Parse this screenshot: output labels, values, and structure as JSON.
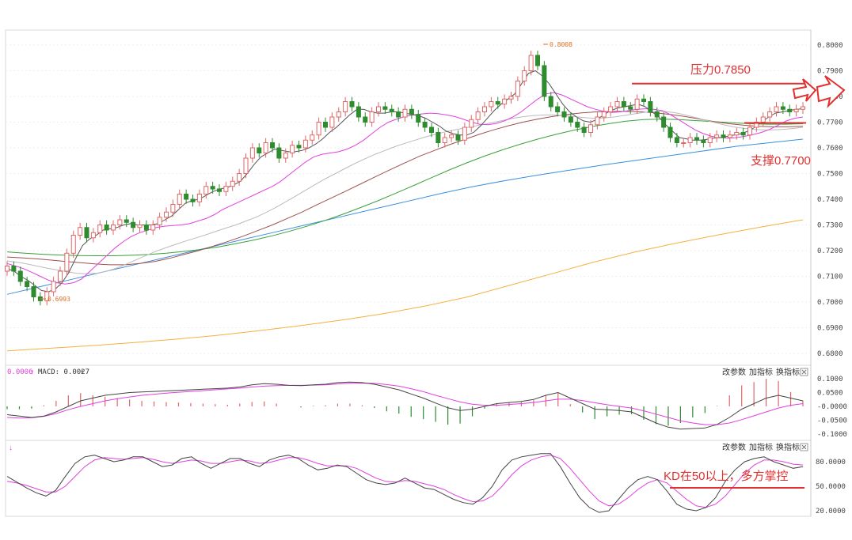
{
  "panels": {
    "price": {
      "y_ticks": [
        "0.8000",
        "0.7900",
        "0.7800",
        "0.7700",
        "0.7600",
        "0.7500",
        "0.7400",
        "0.7300",
        "0.7200",
        "0.7100",
        "0.7000",
        "0.6900",
        "0.6800"
      ],
      "high_label": "0.8008",
      "low_label": "0.6993",
      "resistance_label": "压力0.7850",
      "support_label": "支撑0.7700"
    },
    "macd": {
      "legend_value": "0.0006",
      "legend_macd": "MACD: 0.0027",
      "y_ticks": [
        "0.1000",
        "0.0500",
        "-0.0000",
        "-0.0500",
        "-0.1000"
      ],
      "buttons": [
        "改参数",
        "加指标",
        "换指标"
      ]
    },
    "kd": {
      "y_ticks": [
        "80.0000",
        "50.0000",
        "20.0000"
      ],
      "buttons": [
        "改参数",
        "加指标",
        "换指标"
      ],
      "annotation": "KD在50以上，多方掌控"
    }
  },
  "colors": {
    "up": "#e06666",
    "down": "#2e8b2e",
    "ma5": "#555555",
    "ma10": "#e040e0",
    "ma20": "#bbbbbb",
    "ma30": "#a05050",
    "ma60": "#3aa03a",
    "ma120": "#3a8fdc",
    "ma250": "#f5b040",
    "annotation": "#e03030"
  },
  "chart_data": [
    {
      "type": "candlestick",
      "title": "",
      "ylim": [
        0.675,
        0.805
      ],
      "key_values": {
        "high": 0.8008,
        "low": 0.6993,
        "resistance": 0.785,
        "support": 0.77
      },
      "close": [
        0.714,
        0.712,
        0.708,
        0.706,
        0.702,
        0.7005,
        0.704,
        0.708,
        0.712,
        0.719,
        0.726,
        0.729,
        0.725,
        0.727,
        0.73,
        0.728,
        0.73,
        0.732,
        0.731,
        0.729,
        0.73,
        0.728,
        0.73,
        0.733,
        0.735,
        0.738,
        0.742,
        0.74,
        0.739,
        0.742,
        0.745,
        0.744,
        0.743,
        0.745,
        0.747,
        0.75,
        0.756,
        0.76,
        0.758,
        0.762,
        0.76,
        0.756,
        0.758,
        0.761,
        0.76,
        0.763,
        0.765,
        0.77,
        0.768,
        0.772,
        0.774,
        0.778,
        0.776,
        0.772,
        0.77,
        0.774,
        0.776,
        0.775,
        0.774,
        0.772,
        0.775,
        0.773,
        0.77,
        0.768,
        0.766,
        0.762,
        0.764,
        0.765,
        0.763,
        0.768,
        0.771,
        0.774,
        0.776,
        0.778,
        0.777,
        0.779,
        0.78,
        0.786,
        0.79,
        0.796,
        0.792,
        0.78,
        0.776,
        0.774,
        0.772,
        0.77,
        0.768,
        0.766,
        0.769,
        0.772,
        0.774,
        0.776,
        0.778,
        0.776,
        0.775,
        0.779,
        0.778,
        0.774,
        0.772,
        0.768,
        0.764,
        0.762,
        0.762,
        0.764,
        0.763,
        0.762,
        0.764,
        0.765,
        0.764,
        0.765,
        0.766,
        0.765,
        0.768,
        0.77,
        0.772,
        0.774,
        0.776,
        0.775,
        0.774,
        0.775,
        0.776
      ],
      "ma5": [
        0.713,
        0.712,
        0.71,
        0.7085,
        0.7065,
        0.7045,
        0.704,
        0.705,
        0.7075,
        0.7115,
        0.717,
        0.722,
        0.7245,
        0.726,
        0.728,
        0.7285,
        0.729,
        0.73,
        0.7305,
        0.73,
        0.73,
        0.73,
        0.7305,
        0.732,
        0.7335,
        0.736,
        0.7385,
        0.7395,
        0.74,
        0.7415,
        0.743,
        0.744,
        0.7445,
        0.7455,
        0.747,
        0.75,
        0.7535,
        0.7565,
        0.758,
        0.7595,
        0.759,
        0.7585,
        0.7585,
        0.759,
        0.76,
        0.7615,
        0.7635,
        0.766,
        0.768,
        0.7705,
        0.773,
        0.775,
        0.775,
        0.774,
        0.7735,
        0.7735,
        0.774,
        0.774,
        0.7735,
        0.773,
        0.7725,
        0.7715,
        0.77,
        0.7685,
        0.7665,
        0.7655,
        0.765,
        0.765,
        0.766,
        0.7685,
        0.7715,
        0.7745,
        0.777,
        0.779,
        0.781,
        0.785,
        0.789,
        0.79,
        0.788,
        0.785,
        0.781,
        0.777,
        0.774,
        0.772,
        0.7705,
        0.77,
        0.771,
        0.773,
        0.7745,
        0.7755,
        0.776,
        0.7765,
        0.777,
        0.776,
        0.774,
        0.772,
        0.769,
        0.7665,
        0.764,
        0.7635,
        0.763,
        0.763,
        0.7633,
        0.7638,
        0.764,
        0.7645,
        0.765,
        0.7655,
        0.7665,
        0.768,
        0.77,
        0.772,
        0.7735,
        0.774,
        0.7745,
        0.775,
        0.7752
      ],
      "ma10": [
        0.715,
        0.714,
        0.713,
        0.7115,
        0.71,
        0.7085,
        0.7075,
        0.707,
        0.7075,
        0.709,
        0.712,
        0.715,
        0.718,
        0.721,
        0.7235,
        0.7255,
        0.727,
        0.728,
        0.729,
        0.7295,
        0.7298,
        0.73,
        0.7305,
        0.7315,
        0.7325,
        0.734,
        0.736,
        0.7375,
        0.739,
        0.7405,
        0.742,
        0.7435,
        0.745,
        0.747,
        0.7495,
        0.752,
        0.7545,
        0.7565,
        0.7575,
        0.758,
        0.7585,
        0.7595,
        0.761,
        0.763,
        0.7655,
        0.768,
        0.77,
        0.7712,
        0.7722,
        0.7728,
        0.7732,
        0.7735,
        0.7733,
        0.7728,
        0.7722,
        0.7712,
        0.77,
        0.7692,
        0.769,
        0.7695,
        0.7705,
        0.772,
        0.774,
        0.7765,
        0.779,
        0.781,
        0.7815,
        0.7805,
        0.779,
        0.7775,
        0.776,
        0.775,
        0.7742,
        0.7738,
        0.774,
        0.7745,
        0.775,
        0.7752,
        0.775,
        0.7745,
        0.773,
        0.771,
        0.769,
        0.767,
        0.7655,
        0.7645,
        0.764,
        0.7638,
        0.764,
        0.7645,
        0.7652,
        0.766,
        0.7672,
        0.7688,
        0.7705,
        0.7715,
        0.772
      ],
      "ma20": [
        0.716,
        0.7155,
        0.7148,
        0.714,
        0.7132,
        0.7125,
        0.7118,
        0.7112,
        0.711,
        0.7112,
        0.712,
        0.7132,
        0.7148,
        0.7165,
        0.7182,
        0.7198,
        0.7212,
        0.7225,
        0.7238,
        0.725,
        0.7262,
        0.7275,
        0.7288,
        0.73,
        0.7315,
        0.733,
        0.7348,
        0.7368,
        0.739,
        0.7412,
        0.7435,
        0.7458,
        0.748,
        0.75,
        0.752,
        0.754,
        0.7558,
        0.7575,
        0.759,
        0.7605,
        0.7618,
        0.763,
        0.7642,
        0.7652,
        0.7662,
        0.767,
        0.7678,
        0.7685,
        0.7692,
        0.77,
        0.7708,
        0.7716,
        0.7722,
        0.7726,
        0.7728,
        0.7728,
        0.7726,
        0.7722,
        0.7718,
        0.7715,
        0.7716,
        0.772,
        0.7726,
        0.7732,
        0.7738,
        0.7742,
        0.7742,
        0.7738,
        0.773,
        0.772,
        0.771,
        0.77,
        0.769,
        0.7682,
        0.7676,
        0.7672,
        0.767,
        0.767,
        0.7672,
        0.7675,
        0.768
      ],
      "ma30": [
        0.7175,
        0.7172,
        0.7168,
        0.7163,
        0.7158,
        0.7153,
        0.7148,
        0.7145,
        0.7145,
        0.715,
        0.7158,
        0.717,
        0.7185,
        0.72,
        0.7218,
        0.7236,
        0.7256,
        0.7278,
        0.73,
        0.7325,
        0.735,
        0.7378,
        0.7405,
        0.7432,
        0.746,
        0.7488,
        0.7515,
        0.7542,
        0.7568,
        0.759,
        0.7612,
        0.7632,
        0.7652,
        0.767,
        0.7686,
        0.77,
        0.7712,
        0.7722,
        0.773,
        0.7736,
        0.774,
        0.7742,
        0.7742,
        0.774,
        0.7736,
        0.773,
        0.7722,
        0.7712,
        0.7702,
        0.7694,
        0.7688,
        0.7684,
        0.7682,
        0.7682,
        0.7684
      ],
      "ma60": [
        0.7195,
        0.719,
        0.7186,
        0.7183,
        0.7181,
        0.718,
        0.718,
        0.7182,
        0.7185,
        0.719,
        0.7197,
        0.7205,
        0.7215,
        0.7228,
        0.7242,
        0.7258,
        0.7276,
        0.7296,
        0.7318,
        0.7342,
        0.7368,
        0.7395,
        0.7424,
        0.7454,
        0.7484,
        0.7514,
        0.7542,
        0.7568,
        0.7592,
        0.7614,
        0.7634,
        0.7652,
        0.7668,
        0.7682,
        0.7694,
        0.7704,
        0.771,
        0.7712,
        0.771,
        0.7706,
        0.7702,
        0.7698,
        0.7694,
        0.7692,
        0.7692,
        0.7694
      ],
      "ma120": [
        0.703,
        0.706,
        0.709,
        0.712,
        0.715,
        0.718,
        0.721,
        0.724,
        0.727,
        0.73,
        0.733,
        0.736,
        0.739,
        0.742,
        0.7448,
        0.7472,
        0.7494,
        0.7514,
        0.7534,
        0.7552,
        0.757,
        0.7588,
        0.7606,
        0.762,
        0.7634
      ],
      "ma250": [
        0.681,
        0.682,
        0.683,
        0.6842,
        0.6855,
        0.687,
        0.6888,
        0.6908,
        0.693,
        0.6955,
        0.6985,
        0.702,
        0.7065,
        0.711,
        0.7155,
        0.7195,
        0.723,
        0.7262,
        0.7292,
        0.732
      ]
    },
    {
      "type": "macd",
      "title": "",
      "ylim": [
        -0.11,
        0.11
      ],
      "dif": [
        -0.03,
        -0.035,
        -0.04,
        -0.035,
        -0.02,
        0.0,
        0.02,
        0.03,
        0.04,
        0.045,
        0.05,
        0.052,
        0.054,
        0.056,
        0.058,
        0.06,
        0.062,
        0.064,
        0.066,
        0.07,
        0.078,
        0.082,
        0.08,
        0.076,
        0.075,
        0.078,
        0.08,
        0.086,
        0.088,
        0.086,
        0.08,
        0.07,
        0.06,
        0.045,
        0.03,
        0.012,
        -0.005,
        -0.015,
        -0.01,
        0.0,
        0.01,
        0.014,
        0.018,
        0.025,
        0.04,
        0.05,
        0.03,
        0.01,
        -0.01,
        -0.012,
        -0.015,
        -0.02,
        -0.04,
        -0.06,
        -0.075,
        -0.082,
        -0.08,
        -0.078,
        -0.065,
        -0.04,
        -0.01,
        0.01,
        0.03,
        0.04,
        0.03,
        0.02
      ],
      "dea": [
        -0.04,
        -0.042,
        -0.041,
        -0.036,
        -0.026,
        -0.012,
        0.0,
        0.01,
        0.02,
        0.028,
        0.034,
        0.04,
        0.044,
        0.048,
        0.051,
        0.054,
        0.057,
        0.06,
        0.063,
        0.066,
        0.07,
        0.073,
        0.075,
        0.076,
        0.076,
        0.077,
        0.078,
        0.081,
        0.083,
        0.084,
        0.083,
        0.079,
        0.073,
        0.064,
        0.053,
        0.04,
        0.028,
        0.016,
        0.008,
        0.004,
        0.004,
        0.007,
        0.01,
        0.014,
        0.02,
        0.026,
        0.026,
        0.021,
        0.013,
        0.006,
        0.0,
        -0.006,
        -0.016,
        -0.028,
        -0.04,
        -0.052,
        -0.06,
        -0.066,
        -0.066,
        -0.06,
        -0.048,
        -0.034,
        -0.02,
        -0.006,
        0.004,
        0.01
      ],
      "hist": [
        -0.01,
        -0.01,
        -0.008,
        0.004,
        0.02,
        0.04,
        0.048,
        0.04,
        0.035,
        0.03,
        0.025,
        0.02,
        0.018,
        0.015,
        0.014,
        0.012,
        0.01,
        0.008,
        0.006,
        0.01,
        0.016,
        0.018,
        0.01,
        0.0,
        -0.004,
        0.002,
        0.004,
        0.01,
        0.01,
        0.004,
        -0.006,
        -0.018,
        -0.026,
        -0.038,
        -0.046,
        -0.056,
        -0.066,
        -0.062,
        -0.036,
        -0.008,
        0.012,
        0.014,
        0.016,
        0.022,
        0.04,
        0.048,
        0.008,
        -0.022,
        -0.046,
        -0.036,
        -0.03,
        -0.028,
        -0.048,
        -0.064,
        -0.07,
        -0.06,
        -0.04,
        -0.024,
        0.002,
        0.04,
        0.076,
        0.088,
        0.1,
        0.092,
        0.052,
        0.02
      ]
    },
    {
      "type": "line",
      "title": "",
      "ylim": [
        10,
        100
      ],
      "threshold": 50,
      "k": [
        62,
        55,
        48,
        42,
        38,
        45,
        62,
        78,
        86,
        88,
        84,
        80,
        82,
        86,
        86,
        80,
        74,
        76,
        84,
        86,
        78,
        72,
        78,
        84,
        84,
        78,
        74,
        82,
        86,
        88,
        84,
        76,
        70,
        72,
        76,
        74,
        66,
        58,
        54,
        52,
        54,
        60,
        54,
        48,
        46,
        40,
        34,
        30,
        28,
        36,
        50,
        70,
        82,
        86,
        88,
        90,
        90,
        74,
        54,
        36,
        24,
        18,
        20,
        34,
        48,
        58,
        62,
        58,
        44,
        28,
        22,
        20,
        24,
        36,
        56,
        70,
        80,
        84,
        86,
        80,
        76,
        72,
        74
      ],
      "d": [
        56,
        54,
        51,
        47,
        43,
        43,
        50,
        62,
        74,
        82,
        85,
        84,
        83,
        84,
        85,
        83,
        80,
        78,
        80,
        82,
        81,
        78,
        78,
        80,
        82,
        81,
        78,
        79,
        82,
        85,
        85,
        82,
        78,
        75,
        75,
        75,
        72,
        66,
        60,
        56,
        55,
        57,
        56,
        53,
        50,
        46,
        40,
        35,
        31,
        32,
        38,
        50,
        64,
        75,
        82,
        86,
        88,
        84,
        72,
        58,
        44,
        32,
        26,
        28,
        36,
        46,
        54,
        58,
        54,
        44,
        34,
        26,
        24,
        28,
        38,
        52,
        66,
        76,
        82,
        82,
        80,
        77,
        76
      ]
    }
  ]
}
